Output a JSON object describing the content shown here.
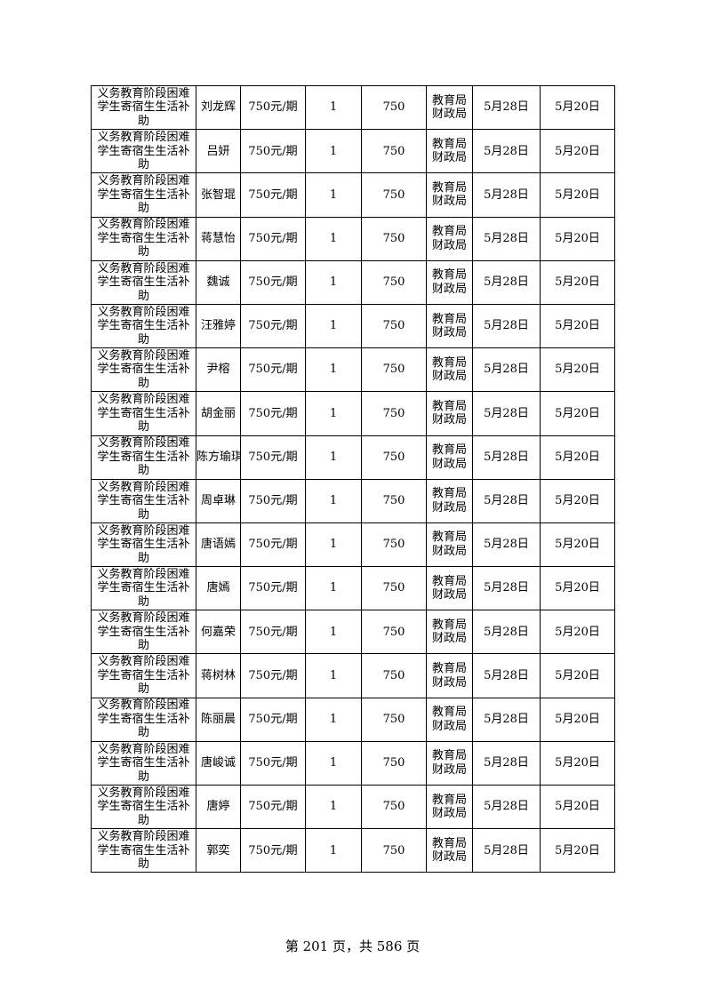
{
  "table": {
    "rows": [
      {
        "item": "义务教育阶段困难学生寄宿生生活补助",
        "name": "刘龙辉",
        "standard": "750元/期",
        "count": "1",
        "amount": "750",
        "dept": "教育局财政局",
        "date1": "5月28日",
        "date2": "5月20日"
      },
      {
        "item": "义务教育阶段困难学生寄宿生生活补助",
        "name": "吕妍",
        "standard": "750元/期",
        "count": "1",
        "amount": "750",
        "dept": "教育局财政局",
        "date1": "5月28日",
        "date2": "5月20日"
      },
      {
        "item": "义务教育阶段困难学生寄宿生生活补助",
        "name": "张智琨",
        "standard": "750元/期",
        "count": "1",
        "amount": "750",
        "dept": "教育局财政局",
        "date1": "5月28日",
        "date2": "5月20日"
      },
      {
        "item": "义务教育阶段困难学生寄宿生生活补助",
        "name": "蒋慧怡",
        "standard": "750元/期",
        "count": "1",
        "amount": "750",
        "dept": "教育局财政局",
        "date1": "5月28日",
        "date2": "5月20日"
      },
      {
        "item": "义务教育阶段困难学生寄宿生生活补助",
        "name": "魏诚",
        "standard": "750元/期",
        "count": "1",
        "amount": "750",
        "dept": "教育局财政局",
        "date1": "5月28日",
        "date2": "5月20日"
      },
      {
        "item": "义务教育阶段困难学生寄宿生生活补助",
        "name": "汪雅婷",
        "standard": "750元/期",
        "count": "1",
        "amount": "750",
        "dept": "教育局财政局",
        "date1": "5月28日",
        "date2": "5月20日"
      },
      {
        "item": "义务教育阶段困难学生寄宿生生活补助",
        "name": "尹榕",
        "standard": "750元/期",
        "count": "1",
        "amount": "750",
        "dept": "教育局财政局",
        "date1": "5月28日",
        "date2": "5月20日"
      },
      {
        "item": "义务教育阶段困难学生寄宿生生活补助",
        "name": "胡金丽",
        "standard": "750元/期",
        "count": "1",
        "amount": "750",
        "dept": "教育局财政局",
        "date1": "5月28日",
        "date2": "5月20日"
      },
      {
        "item": "义务教育阶段困难学生寄宿生生活补助",
        "name": "陈方瑜琪",
        "standard": "750元/期",
        "count": "1",
        "amount": "750",
        "dept": "教育局财政局",
        "date1": "5月28日",
        "date2": "5月20日"
      },
      {
        "item": "义务教育阶段困难学生寄宿生生活补助",
        "name": "周卓琳",
        "standard": "750元/期",
        "count": "1",
        "amount": "750",
        "dept": "教育局财政局",
        "date1": "5月28日",
        "date2": "5月20日"
      },
      {
        "item": "义务教育阶段困难学生寄宿生生活补助",
        "name": "唐语嫣",
        "standard": "750元/期",
        "count": "1",
        "amount": "750",
        "dept": "教育局财政局",
        "date1": "5月28日",
        "date2": "5月20日"
      },
      {
        "item": "义务教育阶段困难学生寄宿生生活补助",
        "name": "唐嫣",
        "standard": "750元/期",
        "count": "1",
        "amount": "750",
        "dept": "教育局财政局",
        "date1": "5月28日",
        "date2": "5月20日"
      },
      {
        "item": "义务教育阶段困难学生寄宿生生活补助",
        "name": "何嘉荣",
        "standard": "750元/期",
        "count": "1",
        "amount": "750",
        "dept": "教育局财政局",
        "date1": "5月28日",
        "date2": "5月20日"
      },
      {
        "item": "义务教育阶段困难学生寄宿生生活补助",
        "name": "蒋树林",
        "standard": "750元/期",
        "count": "1",
        "amount": "750",
        "dept": "教育局财政局",
        "date1": "5月28日",
        "date2": "5月20日"
      },
      {
        "item": "义务教育阶段困难学生寄宿生生活补助",
        "name": "陈丽晨",
        "standard": "750元/期",
        "count": "1",
        "amount": "750",
        "dept": "教育局财政局",
        "date1": "5月28日",
        "date2": "5月20日"
      },
      {
        "item": "义务教育阶段困难学生寄宿生生活补助",
        "name": "唐峻诚",
        "standard": "750元/期",
        "count": "1",
        "amount": "750",
        "dept": "教育局财政局",
        "date1": "5月28日",
        "date2": "5月20日"
      },
      {
        "item": "义务教育阶段困难学生寄宿生生活补助",
        "name": "唐婷",
        "standard": "750元/期",
        "count": "1",
        "amount": "750",
        "dept": "教育局财政局",
        "date1": "5月28日",
        "date2": "5月20日"
      },
      {
        "item": "义务教育阶段困难学生寄宿生生活补助",
        "name": "郭奕",
        "standard": "750元/期",
        "count": "1",
        "amount": "750",
        "dept": "教育局财政局",
        "date1": "5月28日",
        "date2": "5月20日"
      }
    ]
  },
  "footer": {
    "page_label": "第 201 页，共 586 页"
  }
}
